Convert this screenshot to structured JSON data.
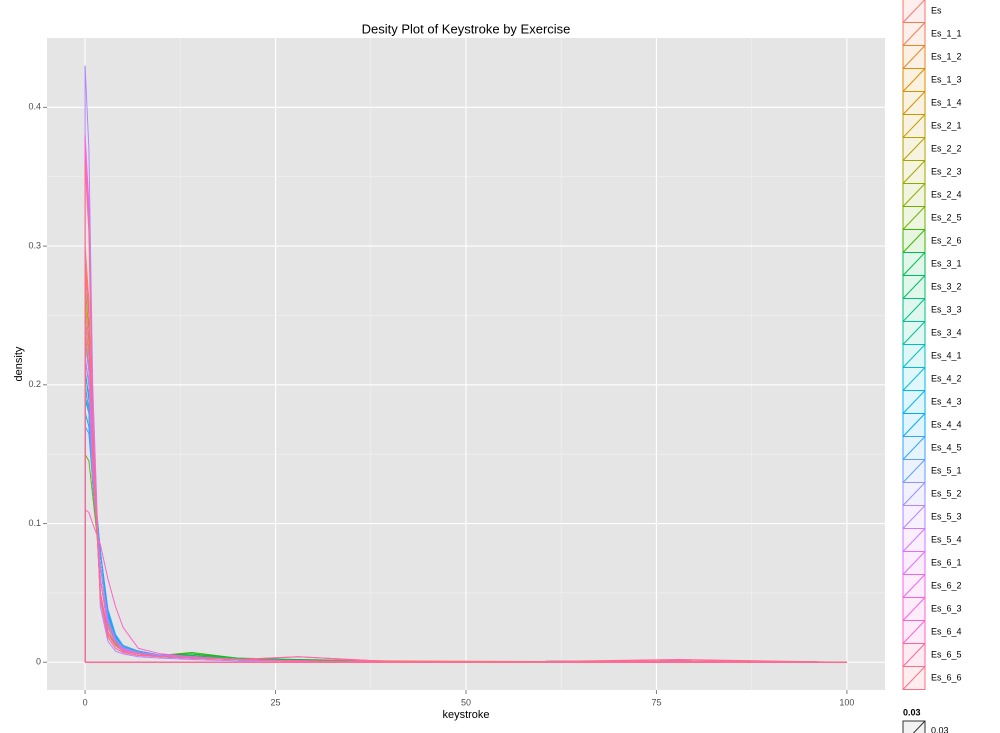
{
  "chart_data": {
    "type": "line",
    "title": "Desity Plot of Keystroke by Exercise",
    "x_label": "keystroke",
    "y_label": "density",
    "xlim": [
      -5,
      105
    ],
    "xticks": [
      0,
      25,
      50,
      75,
      100
    ],
    "ylim": [
      -0.02,
      0.45
    ],
    "yticks": [
      0.0,
      0.1,
      0.2,
      0.3,
      0.4
    ],
    "grid": true,
    "x": [
      0,
      0.5,
      1,
      2,
      3,
      4,
      5,
      7,
      10,
      14,
      20,
      28,
      40,
      60,
      78,
      100
    ],
    "series": [
      {
        "name": "Es",
        "color": "#F8766D",
        "values": [
          0.3,
          0.26,
          0.16,
          0.05,
          0.02,
          0.012,
          0.008,
          0.006,
          0.004,
          0.003,
          0.002,
          0.002,
          0.001,
          0.0005,
          0.001,
          0
        ]
      },
      {
        "name": "Es_1_1",
        "color": "#F27D52",
        "values": [
          0.29,
          0.25,
          0.15,
          0.05,
          0.02,
          0.012,
          0.008,
          0.006,
          0.004,
          0.003,
          0.002,
          0.001,
          0.0005,
          0.0005,
          0.001,
          0
        ]
      },
      {
        "name": "Es_1_2",
        "color": "#E88526",
        "values": [
          0.26,
          0.23,
          0.15,
          0.06,
          0.025,
          0.014,
          0.009,
          0.006,
          0.004,
          0.003,
          0.002,
          0.001,
          0.0005,
          0.0005,
          0.001,
          0
        ]
      },
      {
        "name": "Es_1_3",
        "color": "#DE8C00",
        "values": [
          0.25,
          0.22,
          0.14,
          0.06,
          0.025,
          0.014,
          0.009,
          0.006,
          0.004,
          0.003,
          0.002,
          0.001,
          0.0005,
          0.0005,
          0.001,
          0
        ]
      },
      {
        "name": "Es_1_4",
        "color": "#D39200",
        "values": [
          0.24,
          0.21,
          0.14,
          0.06,
          0.028,
          0.015,
          0.01,
          0.007,
          0.005,
          0.004,
          0.002,
          0.001,
          0.0005,
          0.0005,
          0.001,
          0
        ]
      },
      {
        "name": "Es_2_1",
        "color": "#C49A00",
        "values": [
          0.22,
          0.2,
          0.14,
          0.07,
          0.03,
          0.016,
          0.01,
          0.007,
          0.005,
          0.004,
          0.002,
          0.001,
          0.0005,
          0.0005,
          0.001,
          0
        ]
      },
      {
        "name": "Es_2_2",
        "color": "#B79F00",
        "values": [
          0.21,
          0.19,
          0.13,
          0.07,
          0.03,
          0.016,
          0.01,
          0.007,
          0.005,
          0.004,
          0.002,
          0.001,
          0.0005,
          0.0005,
          0.001,
          0
        ]
      },
      {
        "name": "Es_2_3",
        "color": "#A3A500",
        "values": [
          0.2,
          0.18,
          0.13,
          0.07,
          0.032,
          0.017,
          0.011,
          0.007,
          0.005,
          0.005,
          0.002,
          0.001,
          0.0005,
          0.0005,
          0.001,
          0
        ]
      },
      {
        "name": "Es_2_4",
        "color": "#8EAB00",
        "values": [
          0.27,
          0.24,
          0.15,
          0.05,
          0.022,
          0.013,
          0.009,
          0.006,
          0.005,
          0.006,
          0.002,
          0.001,
          0.0005,
          0.0005,
          0.001,
          0
        ]
      },
      {
        "name": "Es_2_5",
        "color": "#72B000",
        "values": [
          0.15,
          0.145,
          0.12,
          0.07,
          0.035,
          0.018,
          0.012,
          0.008,
          0.005,
          0.006,
          0.002,
          0.001,
          0.0005,
          0.0005,
          0.001,
          0
        ]
      },
      {
        "name": "Es_2_6",
        "color": "#39B600",
        "values": [
          0.19,
          0.18,
          0.13,
          0.07,
          0.032,
          0.017,
          0.011,
          0.007,
          0.005,
          0.007,
          0.003,
          0.001,
          0.0005,
          0.0005,
          0.001,
          0
        ]
      },
      {
        "name": "Es_3_1",
        "color": "#00BB4E",
        "values": [
          0.2,
          0.18,
          0.13,
          0.07,
          0.032,
          0.017,
          0.011,
          0.008,
          0.005,
          0.006,
          0.003,
          0.002,
          0.0005,
          0.0005,
          0.001,
          0
        ]
      },
      {
        "name": "Es_3_2",
        "color": "#00BD62",
        "values": [
          0.21,
          0.19,
          0.13,
          0.07,
          0.03,
          0.016,
          0.01,
          0.007,
          0.005,
          0.005,
          0.002,
          0.001,
          0.0005,
          0.0005,
          0.001,
          0
        ]
      },
      {
        "name": "Es_3_3",
        "color": "#00BF7D",
        "values": [
          0.19,
          0.18,
          0.13,
          0.07,
          0.033,
          0.018,
          0.011,
          0.007,
          0.005,
          0.004,
          0.002,
          0.001,
          0.0005,
          0.0005,
          0.001,
          0
        ]
      },
      {
        "name": "Es_3_4",
        "color": "#00C094",
        "values": [
          0.22,
          0.2,
          0.14,
          0.07,
          0.03,
          0.016,
          0.01,
          0.007,
          0.005,
          0.004,
          0.002,
          0.001,
          0.0005,
          0.0005,
          0.001,
          0
        ]
      },
      {
        "name": "Es_4_1",
        "color": "#00BFC4",
        "values": [
          0.2,
          0.18,
          0.13,
          0.07,
          0.032,
          0.017,
          0.011,
          0.007,
          0.005,
          0.004,
          0.002,
          0.001,
          0.0005,
          0.0005,
          0.001,
          0
        ]
      },
      {
        "name": "Es_4_2",
        "color": "#00BBDA",
        "values": [
          0.21,
          0.19,
          0.14,
          0.08,
          0.035,
          0.018,
          0.011,
          0.007,
          0.005,
          0.004,
          0.002,
          0.001,
          0.0005,
          0.0005,
          0.001,
          0
        ]
      },
      {
        "name": "Es_4_3",
        "color": "#00B4EF",
        "values": [
          0.19,
          0.18,
          0.14,
          0.08,
          0.035,
          0.018,
          0.011,
          0.007,
          0.005,
          0.004,
          0.002,
          0.001,
          0.0005,
          0.0005,
          0.001,
          0
        ]
      },
      {
        "name": "Es_4_4",
        "color": "#00ACFC",
        "values": [
          0.18,
          0.17,
          0.13,
          0.08,
          0.036,
          0.019,
          0.012,
          0.008,
          0.005,
          0.004,
          0.002,
          0.001,
          0.0005,
          0.0005,
          0.001,
          0
        ]
      },
      {
        "name": "Es_4_5",
        "color": "#35A2FF",
        "values": [
          0.17,
          0.165,
          0.13,
          0.08,
          0.038,
          0.02,
          0.012,
          0.008,
          0.005,
          0.004,
          0.002,
          0.001,
          0.0005,
          0.0005,
          0.001,
          0
        ]
      },
      {
        "name": "Es_5_1",
        "color": "#619CFF",
        "values": [
          0.2,
          0.18,
          0.13,
          0.07,
          0.032,
          0.017,
          0.011,
          0.007,
          0.005,
          0.004,
          0.002,
          0.001,
          0.0005,
          0.0005,
          0.001,
          0
        ]
      },
      {
        "name": "Es_5_2",
        "color": "#9590FF",
        "values": [
          0.23,
          0.21,
          0.14,
          0.06,
          0.026,
          0.014,
          0.009,
          0.006,
          0.004,
          0.003,
          0.002,
          0.001,
          0.0005,
          0.0005,
          0.001,
          0
        ]
      },
      {
        "name": "Es_5_3",
        "color": "#B385FF",
        "values": [
          0.43,
          0.37,
          0.2,
          0.04,
          0.015,
          0.008,
          0.006,
          0.004,
          0.003,
          0.002,
          0.001,
          0.001,
          0.0005,
          0.0005,
          0.001,
          0
        ]
      },
      {
        "name": "Es_5_4",
        "color": "#CF78FF",
        "values": [
          0.22,
          0.2,
          0.14,
          0.07,
          0.03,
          0.016,
          0.01,
          0.007,
          0.005,
          0.004,
          0.002,
          0.001,
          0.0005,
          0.0005,
          0.001,
          0
        ]
      },
      {
        "name": "Es_6_1",
        "color": "#E36EF6",
        "values": [
          0.25,
          0.22,
          0.14,
          0.06,
          0.025,
          0.014,
          0.009,
          0.006,
          0.004,
          0.003,
          0.002,
          0.001,
          0.0005,
          0.0005,
          0.001,
          0
        ]
      },
      {
        "name": "Es_6_2",
        "color": "#EF67EB",
        "values": [
          0.38,
          0.33,
          0.18,
          0.045,
          0.018,
          0.01,
          0.007,
          0.005,
          0.004,
          0.003,
          0.002,
          0.001,
          0.0005,
          0.0005,
          0.001,
          0
        ]
      },
      {
        "name": "Es_6_3",
        "color": "#FA62DB",
        "values": [
          0.37,
          0.32,
          0.18,
          0.045,
          0.018,
          0.01,
          0.007,
          0.005,
          0.004,
          0.003,
          0.002,
          0.001,
          0.0005,
          0.0005,
          0.001,
          0
        ]
      },
      {
        "name": "Es_6_4",
        "color": "#FF61C9",
        "values": [
          0.11,
          0.108,
          0.1,
          0.085,
          0.06,
          0.04,
          0.025,
          0.01,
          0.006,
          0.004,
          0.002,
          0.004,
          0.0005,
          0.0005,
          0.001,
          0
        ]
      },
      {
        "name": "Es_6_5",
        "color": "#FF659D",
        "values": [
          0.28,
          0.25,
          0.15,
          0.05,
          0.022,
          0.012,
          0.008,
          0.006,
          0.004,
          0.003,
          0.002,
          0.004,
          0.0005,
          0.0005,
          0.002,
          0
        ]
      },
      {
        "name": "Es_6_6",
        "color": "#FD6F86",
        "values": [
          0.36,
          0.31,
          0.17,
          0.045,
          0.018,
          0.01,
          0.007,
          0.005,
          0.004,
          0.003,
          0.002,
          0.001,
          0.0005,
          0.0005,
          0.001,
          0
        ]
      }
    ],
    "alpha_legend": {
      "title": "0.03",
      "labels": [
        "0.03"
      ]
    }
  }
}
